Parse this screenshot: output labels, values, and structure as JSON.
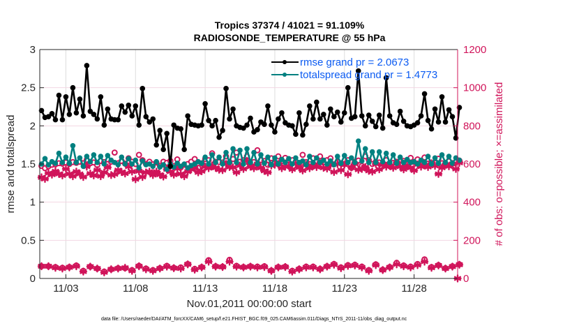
{
  "chart_data": {
    "type": "line",
    "title": [
      "Tropics 37374 / 41021 = 91.109%",
      "RADIOSONDE_TEMPERATURE @ 55 hPa"
    ],
    "xlabel": "Nov.01,2011 00:00:00 start",
    "ylabel": "rmse and totalspread",
    "ylabel_right": "# of obs: o=possible; ×=assimilated",
    "footnote": "data file: /Users/raeder/DAI/ATM_forcXX/CAM6_setup/f.e21.FHIST_BGC.f09_025.CAM6assim.011/Diags_NTrS_2011-11/obs_diag_output.nc",
    "x_unit": "days since Nov.01,2011 00:00",
    "xlim": [
      0.625,
      30.625
    ],
    "ylim": [
      0,
      3
    ],
    "ylim_right": [
      0,
      1200
    ],
    "grid": true,
    "legend_position": "top-right",
    "x_ticks": [
      {
        "value": 2.5,
        "label": "11/03"
      },
      {
        "value": 7.5,
        "label": "11/08"
      },
      {
        "value": 12.5,
        "label": "11/13"
      },
      {
        "value": 17.5,
        "label": "11/18"
      },
      {
        "value": 22.5,
        "label": "11/23"
      },
      {
        "value": 27.5,
        "label": "11/28"
      }
    ],
    "y_ticks": [
      "0",
      "0.5",
      "1",
      "1.5",
      "2",
      "2.5",
      "3"
    ],
    "y_ticks_right": [
      "0",
      "200",
      "400",
      "600",
      "800",
      "1000",
      "1200"
    ],
    "colors": {
      "rmse": "#000000",
      "totalspread": "#008080",
      "obs": "#d0145a",
      "legend_text": "#0b5bf2",
      "right_axis": "#d0145a"
    },
    "series": [
      {
        "name": "rmse grand pr = 2.0673",
        "axis": "left",
        "marker": "dot",
        "x_start": 0.75,
        "x_step": 0.25,
        "values": [
          2.2,
          2.11,
          2.12,
          2.16,
          2.08,
          2.4,
          2.08,
          2.38,
          2.15,
          2.5,
          2.17,
          2.35,
          2.13,
          2.79,
          2.19,
          2.15,
          2.09,
          2.38,
          2.01,
          2.22,
          2.09,
          2.08,
          2.08,
          2.26,
          2.18,
          2.27,
          2.13,
          2.26,
          2.01,
          2.49,
          2.12,
          2.05,
          2.09,
          1.75,
          1.94,
          1.69,
          1.9,
          1.47,
          2.01,
          1.97,
          1.96,
          1.69,
          2.13,
          2.02,
          2.01,
          2.0,
          2.01,
          2.29,
          2.07,
          2.0,
          2.07,
          1.85,
          1.94,
          2.49,
          2.09,
          2.22,
          2.0,
          1.98,
          1.97,
          2.01,
          2.1,
          1.92,
          1.95,
          2.05,
          2.02,
          2.26,
          2.01,
          1.92,
          2.09,
          2.17,
          2.04,
          2.01,
          2.0,
          1.89,
          2.17,
          1.88,
          2.02,
          2.26,
          2.09,
          2.31,
          2.09,
          2.15,
          2.01,
          2.22,
          2.12,
          2.18,
          2.05,
          2.17,
          2.5,
          2.1,
          2.12,
          2.72,
          2.13,
          2.0,
          2.14,
          2.06,
          1.99,
          2.14,
          1.97,
          2.63,
          2.13,
          2.04,
          2.02,
          2.19,
          2.06,
          2.0,
          1.99,
          2.01,
          2.04,
          2.13,
          2.42,
          2.07,
          1.96,
          2.22,
          2.05,
          2.38,
          2.05,
          2.21,
          2.12,
          1.84,
          2.24
        ]
      },
      {
        "name": "totalspread grand pr = 1.4773",
        "axis": "left",
        "marker": "dot",
        "x_start": 0.75,
        "x_step": 0.25,
        "values": [
          1.5,
          1.57,
          1.49,
          1.53,
          1.51,
          1.64,
          1.52,
          1.59,
          1.51,
          1.74,
          1.52,
          1.58,
          1.47,
          1.6,
          1.53,
          1.62,
          1.52,
          1.6,
          1.5,
          1.61,
          1.55,
          1.52,
          1.49,
          1.59,
          1.5,
          1.57,
          1.5,
          1.55,
          1.45,
          1.54,
          1.49,
          1.5,
          1.47,
          1.53,
          1.46,
          1.49,
          1.43,
          1.5,
          1.46,
          1.51,
          1.47,
          1.5,
          1.45,
          1.48,
          1.5,
          1.53,
          1.51,
          1.59,
          1.5,
          1.62,
          1.52,
          1.59,
          1.5,
          1.65,
          1.52,
          1.7,
          1.52,
          1.68,
          1.5,
          1.7,
          1.52,
          1.65,
          1.5,
          1.62,
          1.51,
          1.59,
          1.49,
          1.58,
          1.5,
          1.56,
          1.52,
          1.57,
          1.5,
          1.58,
          1.52,
          1.54,
          1.49,
          1.6,
          1.52,
          1.58,
          1.52,
          1.55,
          1.5,
          1.54,
          1.49,
          1.6,
          1.51,
          1.61,
          1.52,
          1.58,
          1.52,
          1.8,
          1.54,
          1.7,
          1.52,
          1.66,
          1.52,
          1.66,
          1.53,
          1.64,
          1.52,
          1.62,
          1.51,
          1.59,
          1.52,
          1.56,
          1.52,
          1.53,
          1.5,
          1.55,
          1.52,
          1.6,
          1.5,
          1.58,
          1.51,
          1.62,
          1.52,
          1.6,
          1.51,
          1.58,
          1.55
        ]
      },
      {
        "name": "obs possible (upper level)",
        "axis": "right",
        "marker": "circle",
        "x_start": 0.75,
        "x_step": 0.25,
        "values": [
          590,
          578,
          588,
          596,
          598,
          604,
          602,
          608,
          600,
          610,
          606,
          612,
          604,
          622,
          604,
          608,
          594,
          616,
          610,
          600,
          612,
          660,
          604,
          616,
          602,
          630,
          612,
          600,
          648,
          620,
          600,
          612,
          598,
          608,
          590,
          612,
          606,
          616,
          590,
          624,
          582,
          596,
          600,
          612,
          626,
          580,
          604,
          626,
          620,
          656,
          612,
          610,
          608,
          640,
          608,
          626,
          660,
          612,
          620,
          640,
          604,
          610,
          672,
          620,
          616,
          596,
          630,
          604,
          640,
          616,
          632,
          598,
          620,
          612,
          604,
          648,
          610,
          600,
          630,
          616,
          640,
          608,
          620,
          630,
          598,
          612,
          604,
          600,
          620,
          580,
          612,
          618,
          590,
          640,
          620,
          600,
          612,
          608,
          602,
          620,
          598,
          606,
          612,
          596,
          616,
          604,
          632,
          610,
          624,
          600,
          634,
          602,
          600,
          606,
          628,
          604,
          600,
          614,
          602,
          610,
          618
        ]
      },
      {
        "name": "obs assimilated (upper level)",
        "axis": "right",
        "marker": "asterisk",
        "x_start": 0.75,
        "x_step": 0.25,
        "values": [
          530,
          522,
          552,
          544,
          562,
          548,
          540,
          574,
          548,
          536,
          560,
          548,
          532,
          586,
          550,
          540,
          568,
          536,
          556,
          582,
          542,
          546,
          568,
          558,
          550,
          586,
          560,
          520,
          562,
          532,
          556,
          560,
          542,
          560,
          544,
          534,
          572,
          560,
          544,
          576,
          548,
          536,
          560,
          572,
          578,
          556,
          562,
          586,
          578,
          592,
          580,
          570,
          568,
          600,
          584,
          582,
          556,
          592,
          574,
          616,
          586,
          578,
          600,
          580,
          564,
          556,
          592,
          596,
          600,
          578,
          586,
          590,
          572,
          602,
          582,
          566,
          596,
          578,
          590,
          584,
          604,
          580,
          576,
          594,
          558,
          600,
          568,
          596,
          546,
          582,
          600,
          570,
          574,
          584,
          564,
          560,
          600,
          572,
          596,
          586,
          590,
          580,
          606,
          586,
          572,
          592,
          580,
          566,
          598,
          586,
          592,
          584,
          604,
          590,
          548,
          580,
          596,
          588,
          600,
          574,
          606
        ]
      },
      {
        "name": "obs possible (lower level)",
        "axis": "right",
        "marker": "circle",
        "x_start": 0.75,
        "x_step": 0.5,
        "values": [
          64,
          64,
          60,
          56,
          60,
          68,
          40,
          62,
          52,
          36,
          48,
          54,
          54,
          44,
          66,
          52,
          44,
          54,
          66,
          56,
          58,
          76,
          50,
          60,
          96,
          64,
          62,
          98,
          66,
          60,
          64,
          62,
          64,
          42,
          60,
          62,
          40,
          50,
          62,
          62,
          50,
          64,
          76,
          58,
          70,
          72,
          62,
          44,
          74,
          46,
          60,
          82,
          68,
          62,
          76,
          100,
          60,
          70,
          54,
          64,
          74
        ]
      },
      {
        "name": "obs assimilated (lower level)",
        "axis": "right",
        "marker": "asterisk",
        "x_start": 0.75,
        "x_step": 0.5,
        "values": [
          64,
          64,
          56,
          52,
          58,
          64,
          36,
          62,
          52,
          32,
          48,
          52,
          56,
          40,
          64,
          48,
          40,
          52,
          62,
          54,
          52,
          74,
          46,
          58,
          88,
          62,
          60,
          88,
          62,
          58,
          62,
          58,
          60,
          40,
          58,
          60,
          36,
          48,
          58,
          58,
          48,
          62,
          72,
          54,
          66,
          68,
          58,
          40,
          70,
          44,
          58,
          74,
          64,
          58,
          70,
          88,
          56,
          68,
          52,
          62,
          72
        ]
      },
      {
        "name": "obs endpoint",
        "axis": "right",
        "marker": "asterisk",
        "x_start": 30.625,
        "x_step": 0.25,
        "values": [
          0
        ]
      }
    ],
    "legend": [
      {
        "label": "rmse grand pr = 2.0673",
        "color": "#000000"
      },
      {
        "label": "totalspread grand pr = 1.4773",
        "color": "#008080"
      }
    ]
  }
}
